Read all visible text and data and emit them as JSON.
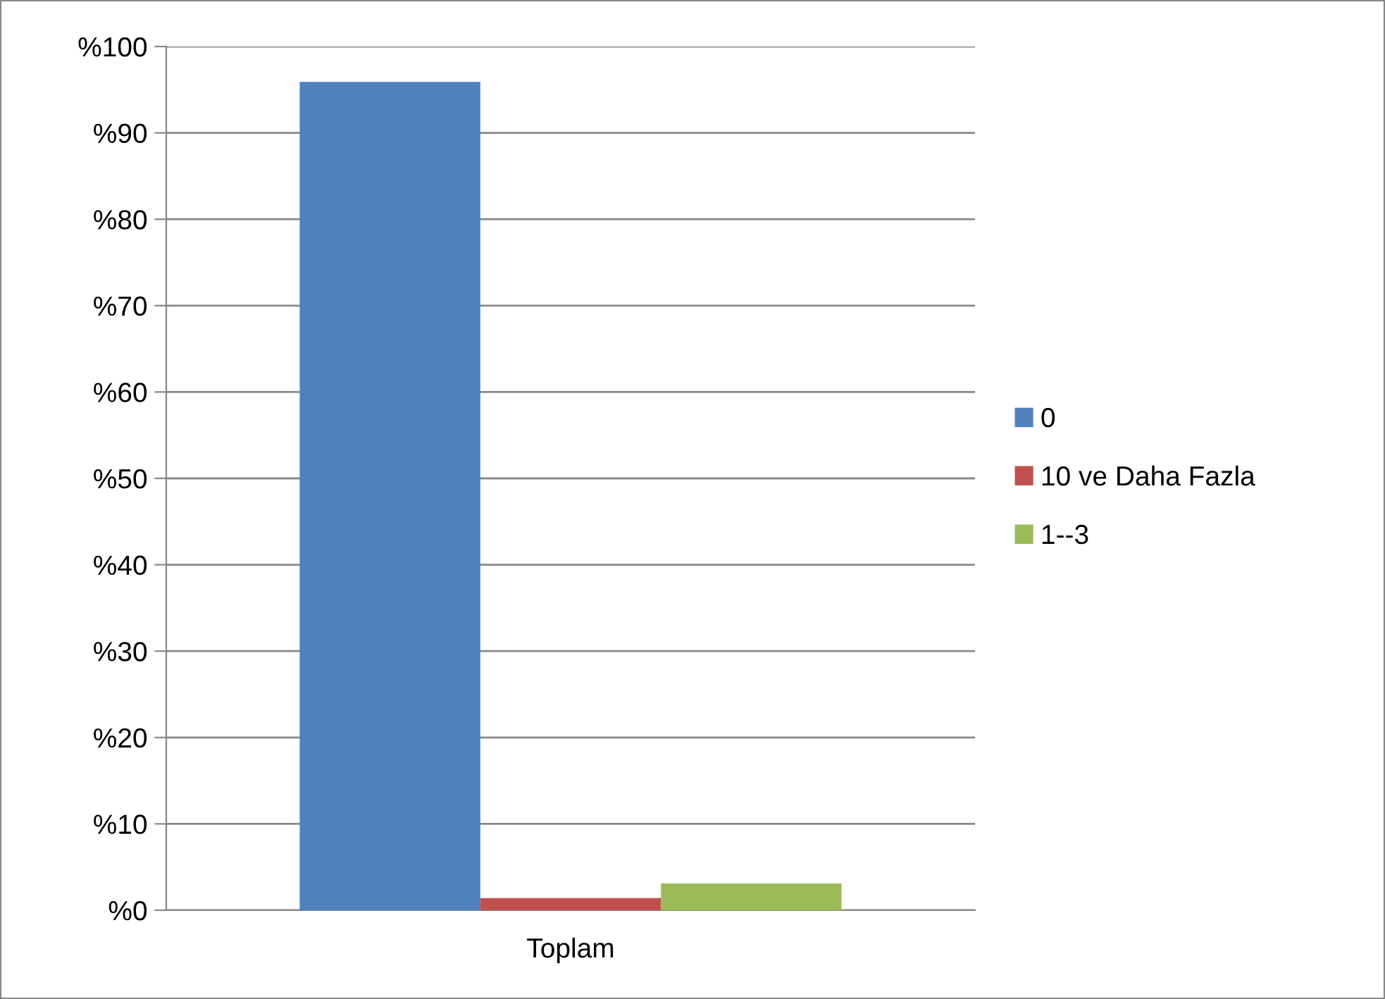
{
  "chart_data": {
    "type": "bar",
    "categories": [
      "Toplam"
    ],
    "series": [
      {
        "name": "0",
        "color": "#4f81bd",
        "values": [
          95.9
        ]
      },
      {
        "name": "10 ve Daha Fazla",
        "color": "#c0504d",
        "values": [
          1.4
        ]
      },
      {
        "name": "1--3",
        "color": "#9bbb59",
        "values": [
          3.1
        ]
      }
    ],
    "ylim": [
      0,
      100
    ],
    "yticks": [
      {
        "value": 0,
        "label": "%0"
      },
      {
        "value": 10,
        "label": "%10"
      },
      {
        "value": 20,
        "label": "%20"
      },
      {
        "value": 30,
        "label": "%30"
      },
      {
        "value": 40,
        "label": "%40"
      },
      {
        "value": 50,
        "label": "%50"
      },
      {
        "value": 60,
        "label": "%60"
      },
      {
        "value": 70,
        "label": "%70"
      },
      {
        "value": 80,
        "label": "%80"
      },
      {
        "value": 90,
        "label": "%90"
      },
      {
        "value": 100,
        "label": "%100"
      }
    ],
    "grid": "y",
    "legend": "right"
  }
}
